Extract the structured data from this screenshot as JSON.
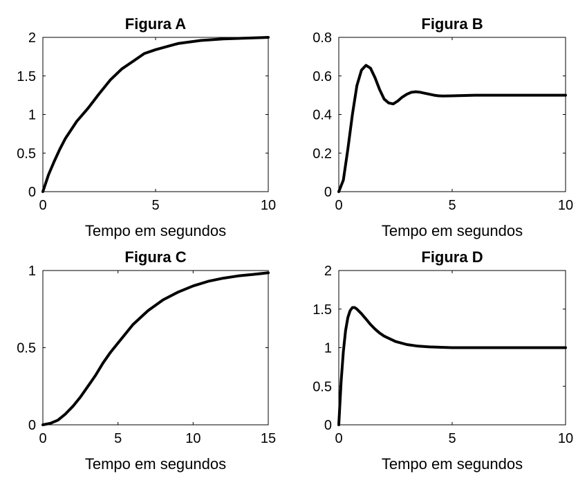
{
  "chart_data": [
    {
      "type": "line",
      "title": "Figura A",
      "xlabel": "Tempo em segundos",
      "ylabel": "",
      "xlim": [
        0,
        10
      ],
      "ylim": [
        0,
        2
      ],
      "xticks": [
        "0",
        "5",
        "10"
      ],
      "yticks": [
        "0",
        "0.5",
        "1",
        "1.5",
        "2"
      ],
      "grid": false,
      "series": [
        {
          "x": [
            0,
            0.25,
            0.5,
            0.75,
            1,
            1.5,
            2,
            2.5,
            3,
            3.5,
            4,
            4.5,
            5,
            6,
            7,
            8,
            9,
            10
          ],
          "y": [
            0,
            0.22,
            0.39,
            0.55,
            0.69,
            0.91,
            1.08,
            1.27,
            1.45,
            1.59,
            1.69,
            1.79,
            1.84,
            1.92,
            1.96,
            1.98,
            1.99,
            2.0
          ]
        }
      ]
    },
    {
      "type": "line",
      "title": "Figura B",
      "xlabel": "Tempo em segundos",
      "ylabel": "",
      "xlim": [
        0,
        10
      ],
      "ylim": [
        0,
        0.8
      ],
      "xticks": [
        "0",
        "5",
        "10"
      ],
      "yticks": [
        "0",
        "0.2",
        "0.4",
        "0.6",
        "0.8"
      ],
      "grid": false,
      "series": [
        {
          "x": [
            0,
            0.2,
            0.4,
            0.6,
            0.8,
            1.0,
            1.2,
            1.4,
            1.6,
            1.8,
            2.0,
            2.2,
            2.4,
            2.6,
            2.8,
            3.0,
            3.2,
            3.4,
            3.6,
            3.8,
            4.0,
            4.2,
            4.4,
            4.6,
            5,
            6,
            7,
            8,
            9,
            10
          ],
          "y": [
            0,
            0.06,
            0.22,
            0.4,
            0.55,
            0.63,
            0.655,
            0.64,
            0.59,
            0.53,
            0.48,
            0.46,
            0.455,
            0.47,
            0.49,
            0.505,
            0.515,
            0.518,
            0.515,
            0.51,
            0.505,
            0.5,
            0.497,
            0.496,
            0.497,
            0.5,
            0.5,
            0.5,
            0.5,
            0.5
          ]
        }
      ]
    },
    {
      "type": "line",
      "title": "Figura C",
      "xlabel": "Tempo em segundos",
      "ylabel": "",
      "xlim": [
        0,
        15
      ],
      "ylim": [
        0,
        1
      ],
      "xticks": [
        "0",
        "5",
        "10",
        "15"
      ],
      "yticks": [
        "0",
        "0.5",
        "1"
      ],
      "grid": false,
      "series": [
        {
          "x": [
            0,
            0.5,
            1,
            1.5,
            2,
            2.5,
            3,
            3.5,
            4,
            4.5,
            5,
            6,
            7,
            8,
            9,
            10,
            11,
            12,
            13,
            14,
            15
          ],
          "y": [
            0,
            0.01,
            0.03,
            0.07,
            0.12,
            0.18,
            0.25,
            0.32,
            0.4,
            0.47,
            0.53,
            0.65,
            0.74,
            0.81,
            0.86,
            0.9,
            0.93,
            0.95,
            0.965,
            0.975,
            0.985
          ]
        }
      ]
    },
    {
      "type": "line",
      "title": "Figura D",
      "xlabel": "Tempo em segundos",
      "ylabel": "",
      "xlim": [
        0,
        10
      ],
      "ylim": [
        0,
        2
      ],
      "xticks": [
        "0",
        "5",
        "10"
      ],
      "yticks": [
        "0",
        "0.5",
        "1",
        "1.5",
        "2"
      ],
      "grid": false,
      "series": [
        {
          "x": [
            0,
            0.1,
            0.2,
            0.3,
            0.4,
            0.5,
            0.6,
            0.7,
            0.8,
            1.0,
            1.2,
            1.4,
            1.6,
            1.8,
            2.0,
            2.5,
            3,
            3.5,
            4,
            5,
            6,
            7,
            8,
            9,
            10
          ],
          "y": [
            0,
            0.55,
            0.95,
            1.22,
            1.39,
            1.48,
            1.52,
            1.52,
            1.5,
            1.44,
            1.37,
            1.3,
            1.24,
            1.19,
            1.15,
            1.08,
            1.04,
            1.02,
            1.01,
            1.0,
            1.0,
            1.0,
            1.0,
            1.0,
            1.0
          ]
        }
      ]
    }
  ]
}
